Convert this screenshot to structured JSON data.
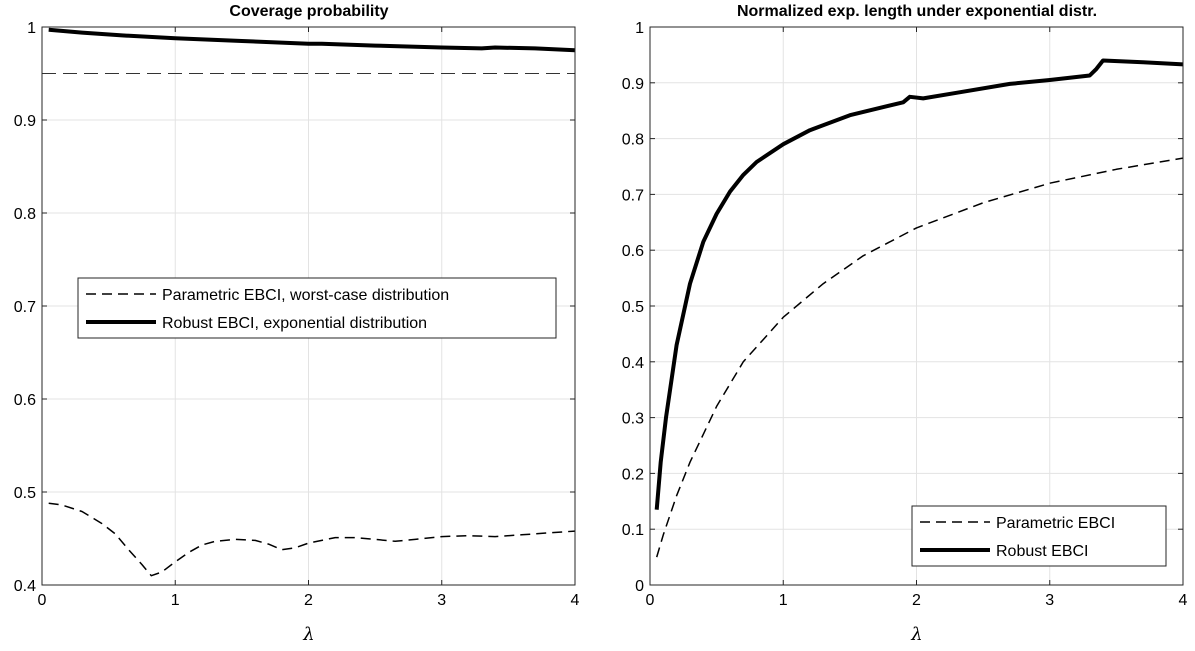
{
  "chart_data": [
    {
      "type": "line",
      "title": "Coverage probability",
      "xlabel": "λ",
      "ylabel": "",
      "xlim": [
        0,
        4
      ],
      "ylim": [
        0.4,
        1
      ],
      "xticks": [
        "0",
        "1",
        "2",
        "3",
        "4"
      ],
      "yticks": [
        "0.4",
        "0.5",
        "0.6",
        "0.7",
        "0.8",
        "0.9",
        "1"
      ],
      "grid": true,
      "legend_position": "center-left",
      "reference_line": 0.95,
      "series": [
        {
          "name": "Parametric EBCI, worst-case distribution",
          "style": "dashed",
          "x": [
            0.05,
            0.15,
            0.3,
            0.45,
            0.55,
            0.65,
            0.75,
            0.82,
            0.9,
            1.0,
            1.1,
            1.2,
            1.3,
            1.45,
            1.6,
            1.7,
            1.8,
            1.9,
            2.0,
            2.1,
            2.2,
            2.35,
            2.5,
            2.65,
            2.8,
            3.0,
            3.2,
            3.4,
            3.6,
            3.8,
            4.0
          ],
          "y": [
            0.488,
            0.486,
            0.479,
            0.466,
            0.455,
            0.438,
            0.422,
            0.41,
            0.414,
            0.425,
            0.435,
            0.443,
            0.447,
            0.449,
            0.448,
            0.444,
            0.438,
            0.44,
            0.445,
            0.448,
            0.451,
            0.451,
            0.449,
            0.447,
            0.449,
            0.452,
            0.453,
            0.452,
            0.454,
            0.456,
            0.458
          ]
        },
        {
          "name": "Robust EBCI, exponential distribution",
          "style": "solid-thick",
          "x": [
            0.05,
            0.3,
            0.6,
            1.0,
            1.5,
            2.0,
            2.1,
            2.5,
            3.0,
            3.3,
            3.4,
            3.7,
            4.0
          ],
          "y": [
            0.997,
            0.994,
            0.991,
            0.988,
            0.985,
            0.982,
            0.982,
            0.98,
            0.978,
            0.977,
            0.978,
            0.977,
            0.975
          ]
        }
      ]
    },
    {
      "type": "line",
      "title": "Normalized exp. length under exponential distr.",
      "xlabel": "λ",
      "ylabel": "",
      "xlim": [
        0,
        4
      ],
      "ylim": [
        0,
        1
      ],
      "xticks": [
        "0",
        "1",
        "2",
        "3",
        "4"
      ],
      "yticks": [
        "0",
        "0.1",
        "0.2",
        "0.3",
        "0.4",
        "0.5",
        "0.6",
        "0.7",
        "0.8",
        "0.9",
        "1"
      ],
      "grid": true,
      "legend_position": "bottom-right",
      "series": [
        {
          "name": "Parametric EBCI",
          "style": "dashed",
          "x": [
            0.05,
            0.1,
            0.2,
            0.3,
            0.4,
            0.5,
            0.7,
            1.0,
            1.3,
            1.6,
            2.0,
            2.5,
            3.0,
            3.5,
            4.0
          ],
          "y": [
            0.05,
            0.09,
            0.16,
            0.22,
            0.27,
            0.32,
            0.4,
            0.48,
            0.54,
            0.59,
            0.64,
            0.685,
            0.72,
            0.745,
            0.765
          ]
        },
        {
          "name": "Robust EBCI",
          "style": "solid-thick",
          "x": [
            0.05,
            0.08,
            0.12,
            0.2,
            0.3,
            0.4,
            0.5,
            0.6,
            0.7,
            0.8,
            1.0,
            1.2,
            1.5,
            1.9,
            1.95,
            2.05,
            2.3,
            2.7,
            3.0,
            3.3,
            3.35,
            3.4,
            3.7,
            4.0
          ],
          "y": [
            0.135,
            0.22,
            0.3,
            0.43,
            0.54,
            0.615,
            0.665,
            0.705,
            0.735,
            0.758,
            0.79,
            0.815,
            0.842,
            0.865,
            0.875,
            0.872,
            0.882,
            0.898,
            0.905,
            0.913,
            0.925,
            0.94,
            0.937,
            0.933
          ]
        }
      ]
    }
  ]
}
